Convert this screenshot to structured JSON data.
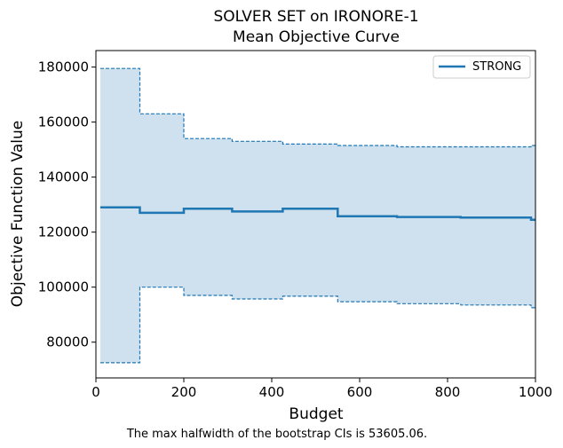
{
  "chart_data": {
    "type": "line",
    "title": "SOLVER SET on IRONORE-1",
    "subtitle": "Mean Objective Curve",
    "xlabel": "Budget",
    "ylabel": "Objective Function Value",
    "xlim": [
      0,
      1000
    ],
    "ylim": [
      67000,
      186000
    ],
    "xticks": [
      0,
      200,
      400,
      600,
      800,
      1000
    ],
    "xtick_labels": [
      "0",
      "200",
      "400",
      "600",
      "800",
      "1000"
    ],
    "yticks": [
      80000,
      100000,
      120000,
      140000,
      160000,
      180000
    ],
    "ytick_labels": [
      "80000",
      "100000",
      "120000",
      "140000",
      "160000",
      "180000"
    ],
    "grid": false,
    "legend": {
      "position": "top-right",
      "entries": [
        "STRONG"
      ]
    },
    "colors": {
      "line": "#1f77b4",
      "band": "#cfe0ee"
    },
    "step": "post",
    "series": [
      {
        "name": "STRONG",
        "role": "mean",
        "x": [
          10,
          100,
          200,
          310,
          425,
          550,
          685,
          830,
          990,
          1000
        ],
        "y": [
          129000,
          127000,
          128500,
          127500,
          128500,
          125800,
          125500,
          125300,
          124500,
          124500
        ]
      },
      {
        "role": "ci-upper",
        "x": [
          10,
          100,
          200,
          310,
          425,
          550,
          685,
          830,
          990,
          1000
        ],
        "y": [
          179500,
          163000,
          154000,
          153000,
          152000,
          151500,
          151000,
          151000,
          151500,
          151500
        ]
      },
      {
        "role": "ci-lower",
        "x": [
          10,
          100,
          200,
          310,
          425,
          550,
          685,
          830,
          990,
          1000
        ],
        "y": [
          72500,
          100000,
          97000,
          95700,
          96700,
          94700,
          94000,
          93500,
          92500,
          92500
        ]
      }
    ],
    "annotation": "The max halfwidth of the bootstrap CIs is 53605.06."
  }
}
